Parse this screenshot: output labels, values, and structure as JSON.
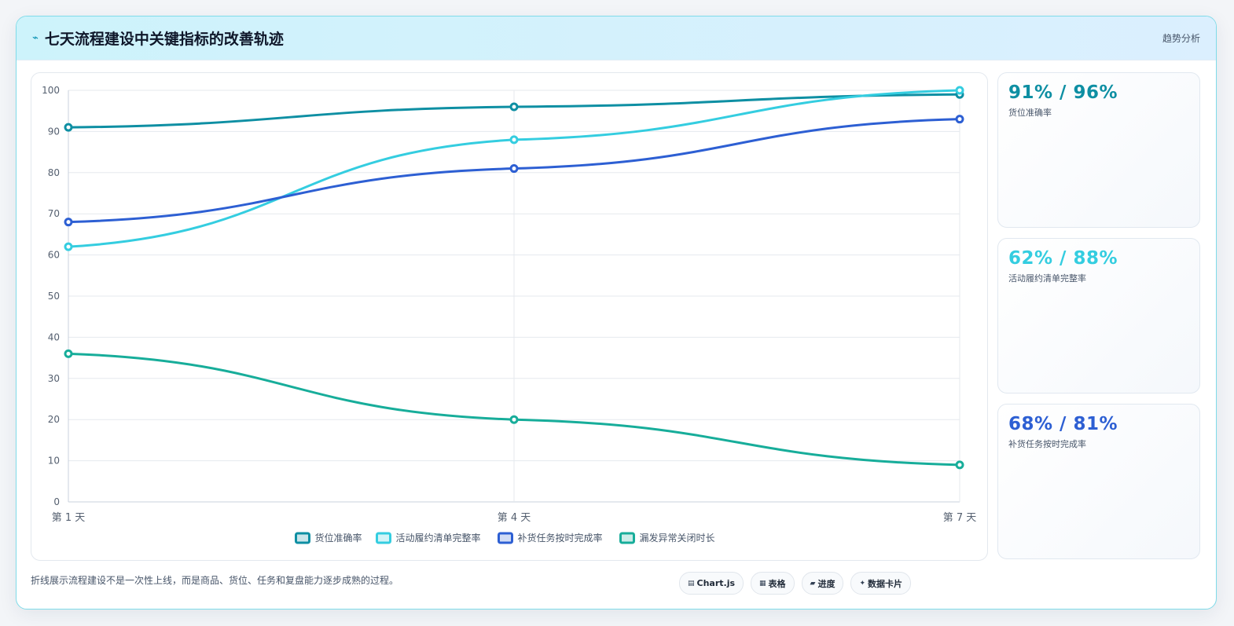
{
  "header": {
    "title": "七天流程建设中关键指标的改善轨迹",
    "icon": "lightning-icon",
    "tag": "趋势分析"
  },
  "chart_data": {
    "type": "line",
    "categories": [
      "第 1 天",
      "第 4 天",
      "第 7 天"
    ],
    "ylim": [
      0,
      100
    ],
    "yticks": [
      0,
      10,
      20,
      30,
      40,
      50,
      60,
      70,
      80,
      90,
      100
    ],
    "grid": true,
    "legend_position": "bottom",
    "series": [
      {
        "name": "货位准确率",
        "color": "#0e8fa3",
        "values": [
          91,
          96,
          99
        ]
      },
      {
        "name": "活动履约清单完整率",
        "color": "#34cde0",
        "values": [
          62,
          88,
          100
        ]
      },
      {
        "name": "补货任务按时完成率",
        "color": "#2d5fd3",
        "values": [
          68,
          81,
          93
        ]
      },
      {
        "name": "漏发异常关闭时长",
        "color": "#17ad9a",
        "values": [
          36,
          20,
          9
        ]
      }
    ]
  },
  "stats": [
    {
      "value": "91% / 96%",
      "label": "货位准确率",
      "color": "#0e8fa3"
    },
    {
      "value": "62% / 88%",
      "label": "活动履约清单完整率",
      "color": "#34cde0"
    },
    {
      "value": "68% / 81%",
      "label": "补货任务按时完成率",
      "color": "#2d5fd3"
    }
  ],
  "footer": {
    "note": "折线展示流程建设不是一次性上线，而是商品、货位、任务和复盘能力逐步成熟的过程。",
    "chips": [
      {
        "icon": "chart-icon",
        "glyph": "▤",
        "label": "Chart.js"
      },
      {
        "icon": "table-icon",
        "glyph": "▦",
        "label": "表格"
      },
      {
        "icon": "progress-icon",
        "glyph": "▰",
        "label": "进度"
      },
      {
        "icon": "sparkle-icon",
        "glyph": "✦",
        "label": "数据卡片"
      }
    ]
  }
}
